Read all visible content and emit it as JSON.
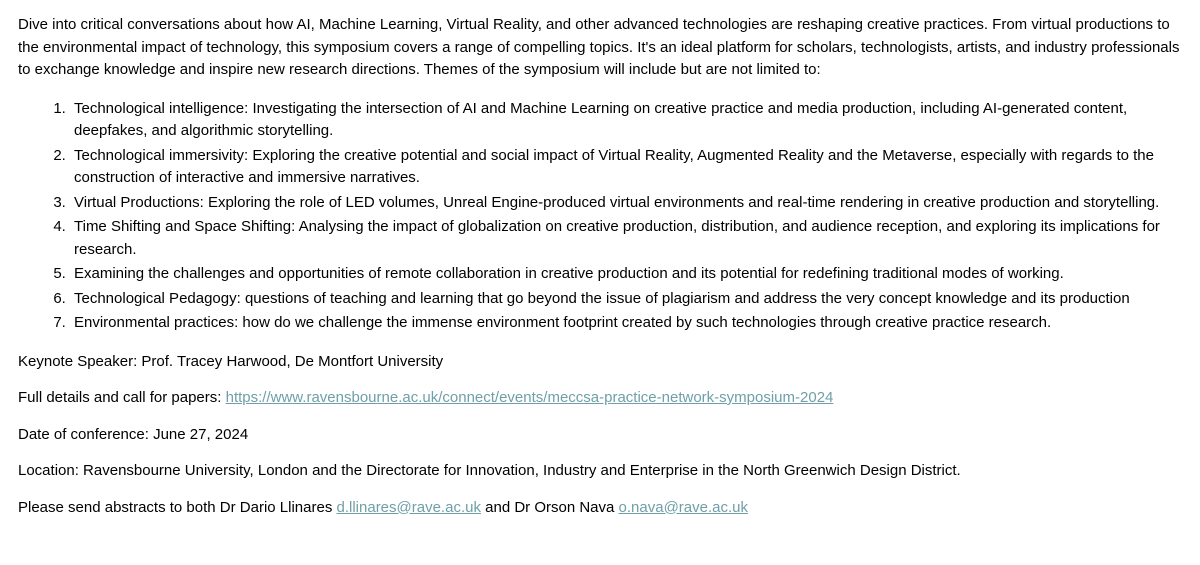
{
  "intro": "Dive into critical conversations about how AI, Machine Learning, Virtual Reality, and other advanced technologies are reshaping creative practices. From virtual productions to the environmental impact of technology, this symposium covers a range of compelling topics. It's an ideal platform for scholars, technologists, artists, and industry professionals to exchange knowledge and inspire new research directions. Themes of the symposium will include but are not limited to:",
  "themes": [
    "Technological intelligence: Investigating the intersection of AI and Machine Learning on creative practice and media production, including AI-generated content, deepfakes, and algorithmic storytelling.",
    "Technological immersivity: Exploring the creative potential and social impact of Virtual Reality, Augmented Reality and the Metaverse, especially with regards to the construction of interactive and immersive narratives.",
    "Virtual Productions: Exploring the role of LED volumes, Unreal Engine-produced virtual environments and real-time rendering in creative production and storytelling.",
    "Time Shifting and Space Shifting: Analysing the impact of globalization on creative production, distribution, and audience reception, and exploring its implications for research.",
    "Examining the challenges and opportunities of remote collaboration in creative production and its potential for redefining traditional modes of working.",
    "Technological Pedagogy: questions of teaching and learning that go beyond the issue of plagiarism and address the very concept knowledge and its production",
    "Environmental practices: how do we challenge the immense environment footprint created by such technologies through creative practice research."
  ],
  "keynote": "Keynote Speaker: Prof. Tracey Harwood, De Montfort University",
  "call_label": "Full details and call for papers: ",
  "call_url": "https://www.ravensbourne.ac.uk/connect/events/meccsa-practice-network-symposium-2024",
  "date_line": "Date of conference: June 27, 2024",
  "location_line": "Location: Ravensbourne University, London and the Directorate for Innovation, Industry and Enterprise in the North Greenwich Design District.",
  "abstracts_pre": "Please send abstracts to both Dr Dario Llinares ",
  "email1": "d.llinares@rave.ac.uk",
  "abstracts_mid": " and Dr Orson Nava ",
  "email2": "o.nava@rave.ac.uk",
  "link_color": "#6f9fa8"
}
